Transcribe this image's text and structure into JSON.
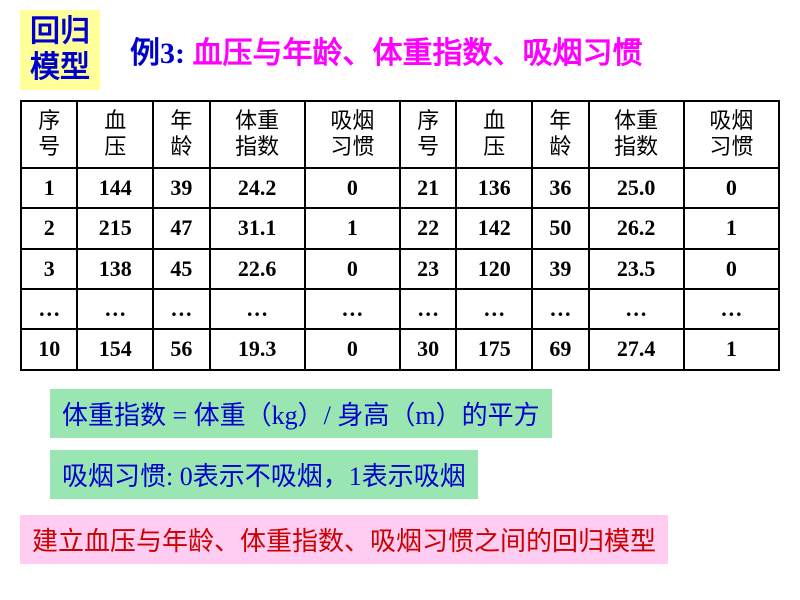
{
  "badge": "回归\n模型",
  "title_prefix": "例3:",
  "title_rest": " 血压与年龄、体重指数、吸烟习惯",
  "table": {
    "headers": [
      "序\n号",
      "血\n压",
      "年\n龄",
      "体重\n指数",
      "吸烟\n习惯",
      "序\n号",
      "血\n压",
      "年\n龄",
      "体重\n指数",
      "吸烟\n习惯"
    ],
    "rows": [
      [
        "1",
        "144",
        "39",
        "24.2",
        "0",
        "21",
        "136",
        "36",
        "25.0",
        "0"
      ],
      [
        "2",
        "215",
        "47",
        "31.1",
        "1",
        "22",
        "142",
        "50",
        "26.2",
        "1"
      ],
      [
        "3",
        "138",
        "45",
        "22.6",
        "0",
        "23",
        "120",
        "39",
        "23.5",
        "0"
      ],
      [
        "…",
        "…",
        "…",
        "…",
        "…",
        "…",
        "…",
        "…",
        "…",
        "…"
      ],
      [
        "10",
        "154",
        "56",
        "19.3",
        "0",
        "30",
        "175",
        "69",
        "27.4",
        "1"
      ]
    ]
  },
  "note1": "体重指数 = 体重（kg）/ 身高（m）的平方",
  "note2": "吸烟习惯: 0表示不吸烟，1表示吸烟",
  "note3": "建立血压与年龄、体重指数、吸烟习惯之间的回归模型",
  "colors": {
    "badge_bg": "#ffff99",
    "badge_fg": "#0000cc",
    "title_ex": "#0000cc",
    "title_main": "#ff00ff",
    "note_green_bg": "#99e6b3",
    "note_green_fg": "#0000cc",
    "note_pink_bg": "#ffccf2",
    "note_pink_fg": "#cc0000",
    "border": "#000000"
  }
}
